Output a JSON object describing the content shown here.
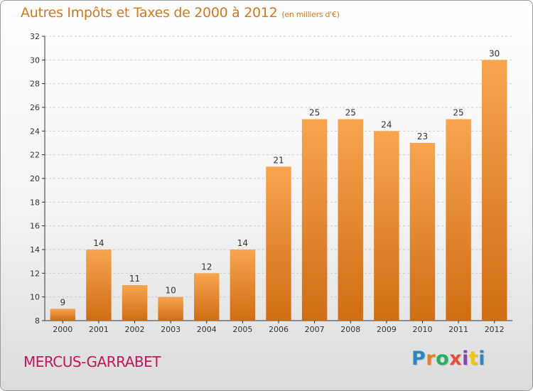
{
  "header": {
    "title": "Autres Impôts et Taxes de 2000 à 2012",
    "unit": "(en milliers d'€)"
  },
  "footer": {
    "place": "MERCUS-GARRABET",
    "logo_text": "Proxiti",
    "logo_colors": [
      "#2e86c1",
      "#e67e22",
      "#27ae60",
      "#e74c3c",
      "#8e44ad",
      "#f1c40f",
      "#2e86c1"
    ]
  },
  "colors": {
    "bar_light": "#f7a54f",
    "bar_dark": "#d06d14",
    "title": "#d1781e",
    "place": "#c2185b",
    "axis": "#333333",
    "grid": "#cccccc"
  },
  "chart_data": {
    "type": "bar",
    "categories": [
      "2000",
      "2001",
      "2002",
      "2003",
      "2004",
      "2005",
      "2006",
      "2007",
      "2008",
      "2009",
      "2010",
      "2011",
      "2012"
    ],
    "values": [
      9,
      14,
      11,
      10,
      12,
      14,
      21,
      25,
      25,
      24,
      23,
      25,
      30
    ],
    "title": "Autres Impôts et Taxes de 2000 à 2012",
    "subtitle": "(en milliers d'€)",
    "xlabel": "",
    "ylabel": "",
    "ylim": [
      8,
      32
    ],
    "yticks": [
      8,
      10,
      12,
      14,
      16,
      18,
      20,
      22,
      24,
      26,
      28,
      30,
      32
    ],
    "grid": true,
    "data_labels": true
  }
}
